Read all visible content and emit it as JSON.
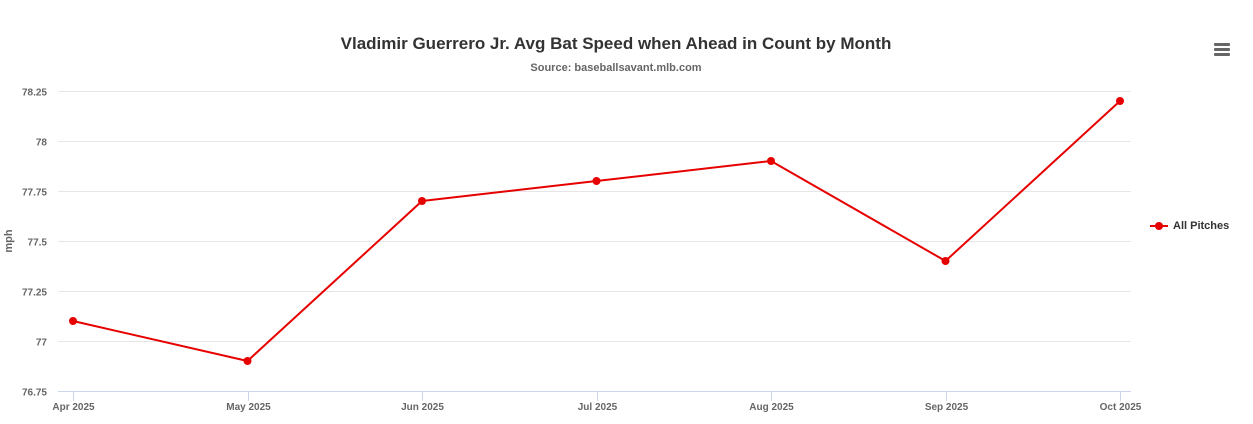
{
  "chart_data": {
    "type": "line",
    "title": "Vladimir Guerrero Jr. Avg Bat Speed when Ahead in Count by Month",
    "subtitle": "Source: baseballsavant.mlb.com",
    "xlabel": "",
    "ylabel": "mph",
    "categories": [
      "Apr 2025",
      "May 2025",
      "Jun 2025",
      "Jul 2025",
      "Aug 2025",
      "Sep 2025",
      "Oct 2025"
    ],
    "series": [
      {
        "name": "All Pitches",
        "color": "#e60000",
        "values": [
          77.1,
          76.9,
          77.7,
          77.8,
          77.9,
          77.4,
          78.2
        ]
      }
    ],
    "ylim": [
      76.75,
      78.25
    ],
    "yticks": [
      76.75,
      77,
      77.25,
      77.5,
      77.75,
      78,
      78.25
    ],
    "ytick_labels": [
      "76.75",
      "77",
      "77.25",
      "77.5",
      "77.75",
      "78",
      "78.25"
    ],
    "grid": true,
    "legend_position": "right"
  },
  "colors": {
    "grid": "#e6e6e6",
    "axis": "#ccd6eb",
    "text": "#666666",
    "title": "#333333"
  },
  "icons": {
    "menu": "hamburger-menu-icon"
  }
}
